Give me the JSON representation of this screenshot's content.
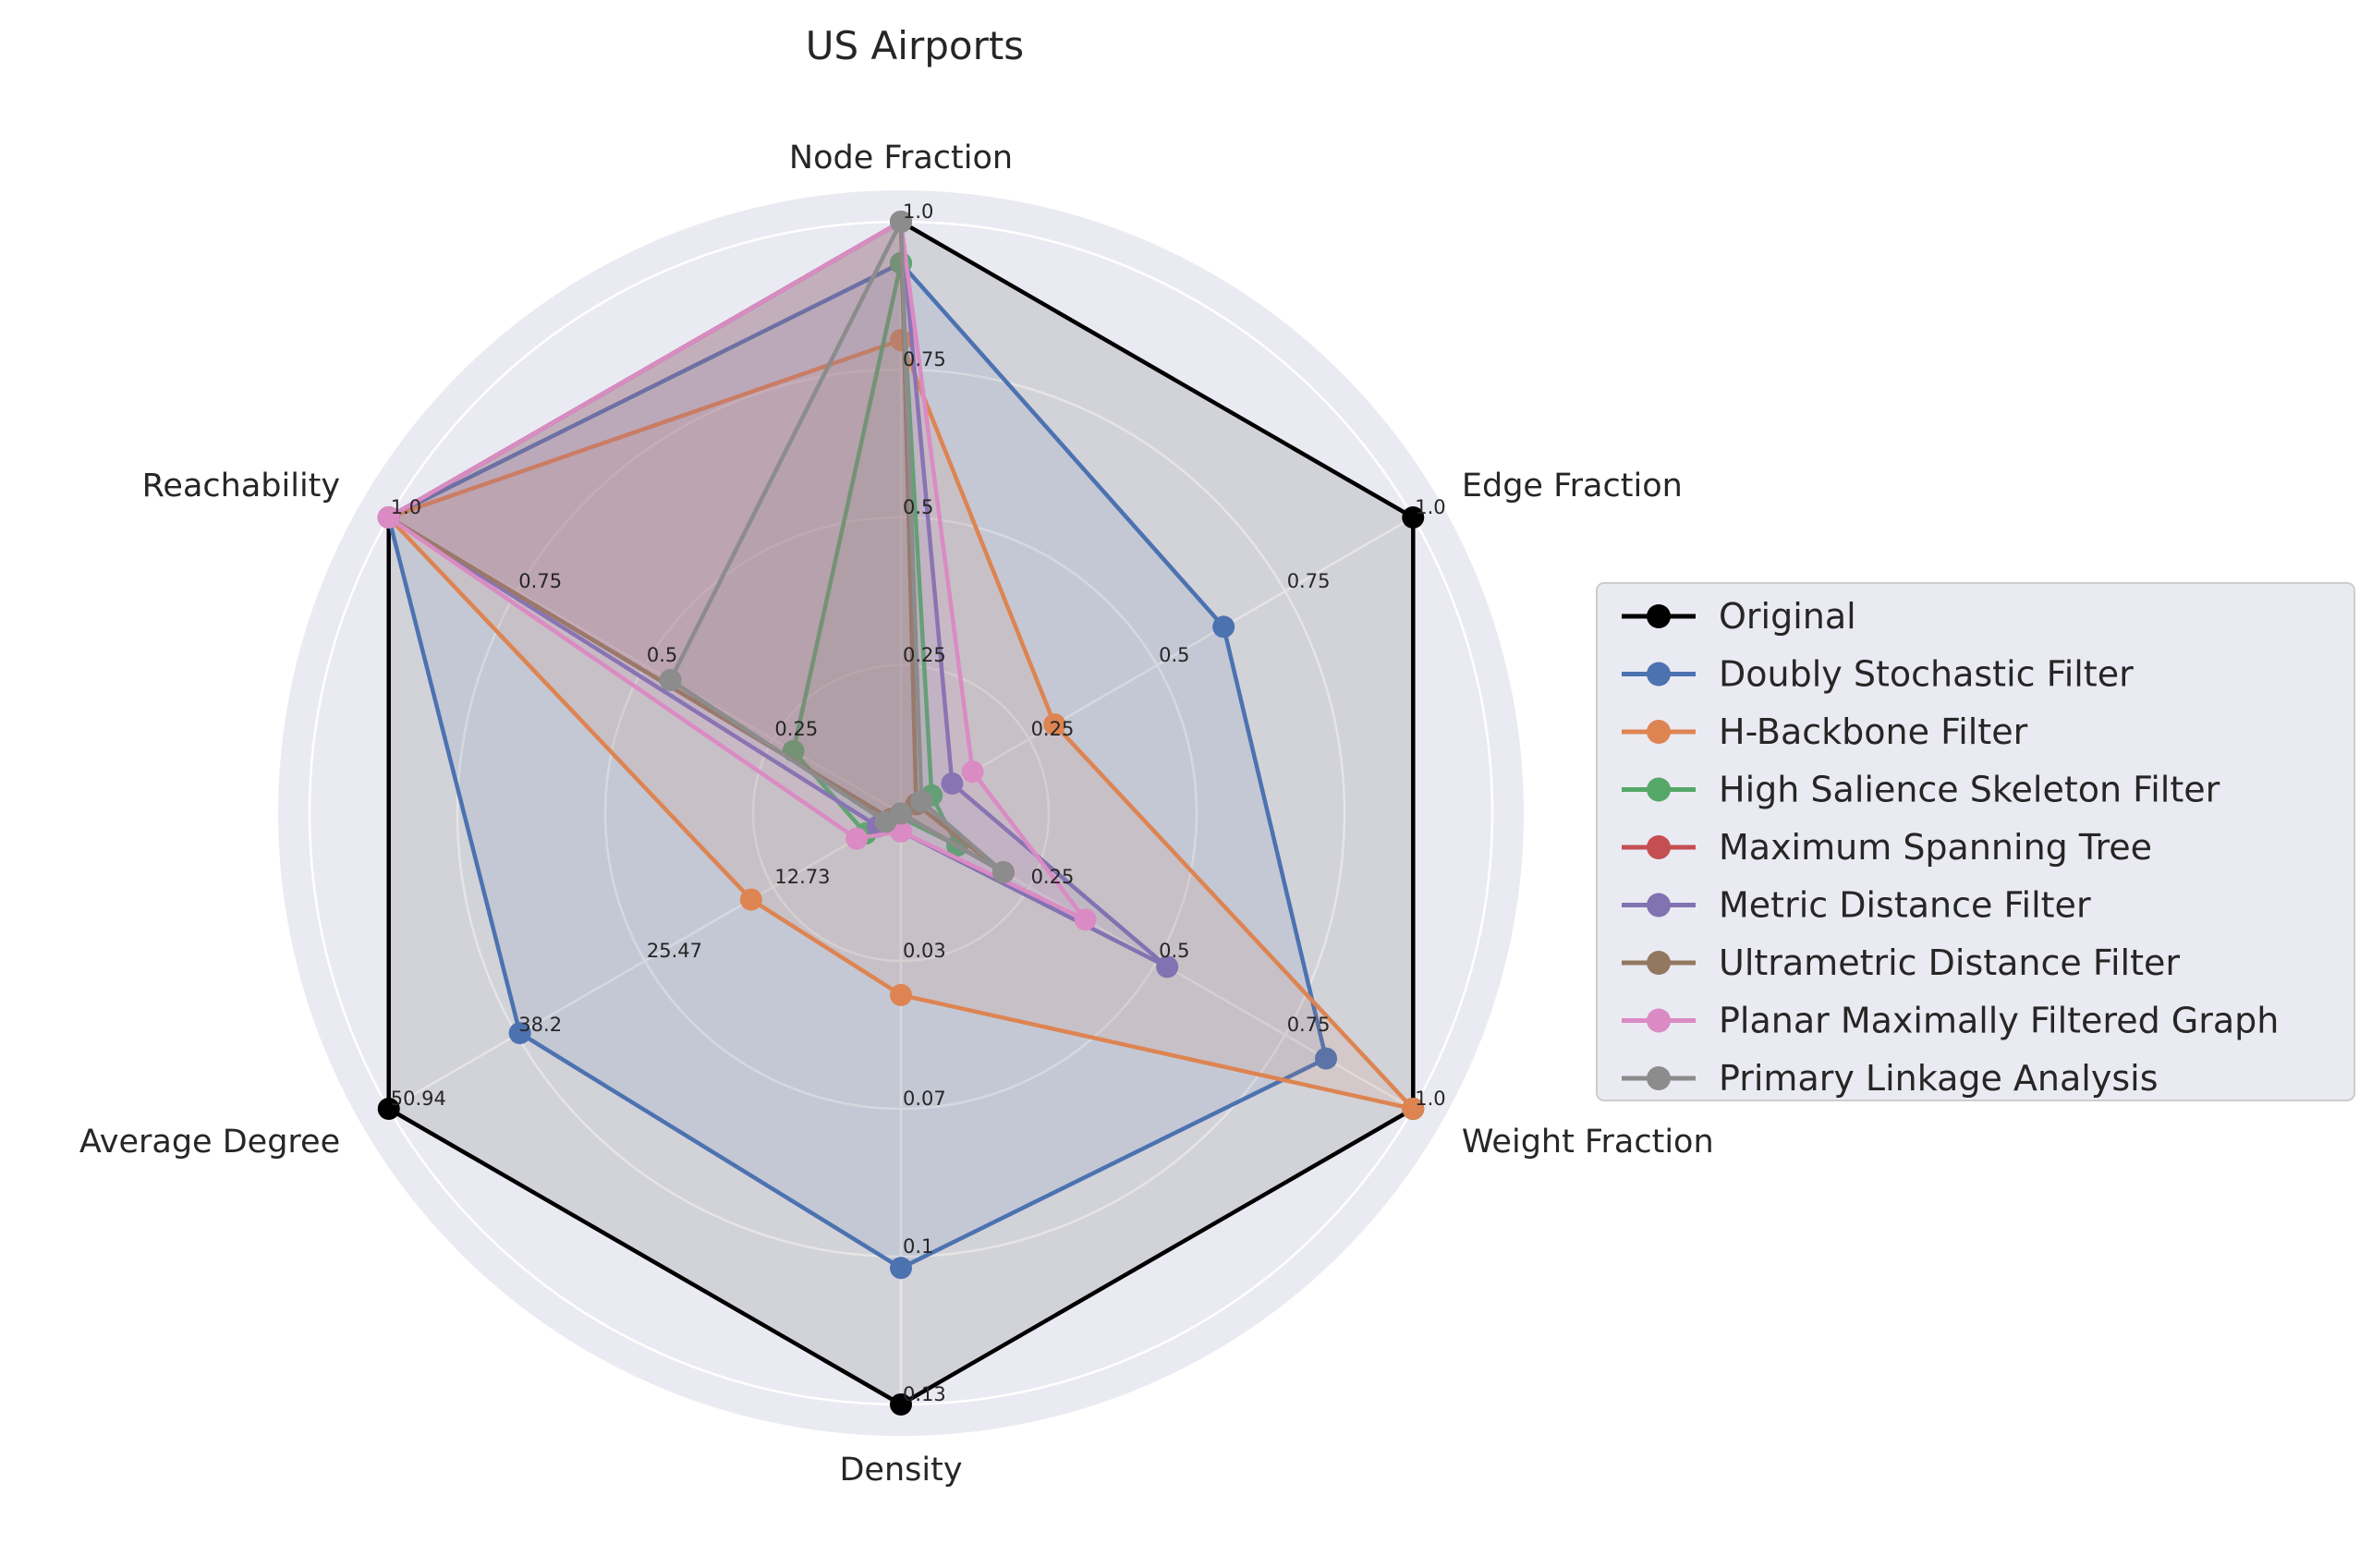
{
  "chart_data": {
    "type": "radar",
    "title": "US Airports",
    "axes": [
      {
        "name": "Node Fraction",
        "max": 1.0,
        "ticks": [
          "0.25",
          "0.5",
          "0.75",
          "1.0"
        ]
      },
      {
        "name": "Edge Fraction",
        "max": 1.0,
        "ticks": [
          "0.25",
          "0.5",
          "0.75",
          "1.0"
        ]
      },
      {
        "name": "Weight Fraction",
        "max": 1.0,
        "ticks": [
          "0.25",
          "0.5",
          "0.75",
          "1.0"
        ]
      },
      {
        "name": "Density",
        "max": 0.13,
        "ticks": [
          "0.03",
          "0.07",
          "0.1",
          "0.13"
        ]
      },
      {
        "name": "Average Degree",
        "max": 50.94,
        "ticks": [
          "12.73",
          "25.47",
          "38.2",
          "50.94"
        ]
      },
      {
        "name": "Reachability",
        "max": 1.0,
        "ticks": [
          "0.25",
          "0.5",
          "0.75",
          "1.0"
        ]
      }
    ],
    "series": [
      {
        "name": "Original",
        "color": "#000000",
        "values": [
          1.0,
          1.0,
          1.0,
          0.13,
          50.94,
          1.0
        ]
      },
      {
        "name": "Doubly Stochastic Filter",
        "color": "#4c72b0",
        "values": [
          0.93,
          0.63,
          0.83,
          0.1,
          37.9,
          1.0
        ]
      },
      {
        "name": "H-Backbone Filter",
        "color": "#dd8452",
        "values": [
          0.8,
          0.3,
          1.0,
          0.04,
          14.9,
          1.0
        ]
      },
      {
        "name": "High Salience Skeleton Filter",
        "color": "#55a868",
        "values": [
          0.93,
          0.06,
          0.11,
          0.001,
          3.5,
          0.21
        ]
      },
      {
        "name": "Maximum Spanning Tree",
        "color": "#c44e52",
        "values": [
          1.0,
          0.03,
          0.2,
          0.0001,
          1.0,
          1.0
        ]
      },
      {
        "name": "Metric Distance Filter",
        "color": "#8172b2",
        "values": [
          1.0,
          0.1,
          0.52,
          0.004,
          2.3,
          1.0
        ]
      },
      {
        "name": "Ultrametric Distance Filter",
        "color": "#937860",
        "values": [
          1.0,
          0.03,
          0.2,
          0.0001,
          1.0,
          1.0
        ]
      },
      {
        "name": "Planar Maximally Filtered Graph",
        "color": "#da8bc3",
        "values": [
          1.0,
          0.14,
          0.36,
          0.004,
          4.4,
          1.0
        ]
      },
      {
        "name": "Primary Linkage Analysis",
        "color": "#8c8c8c",
        "values": [
          1.0,
          0.04,
          0.2,
          0.0001,
          1.5,
          0.45
        ]
      }
    ],
    "legend_position": "right",
    "grid": true
  }
}
